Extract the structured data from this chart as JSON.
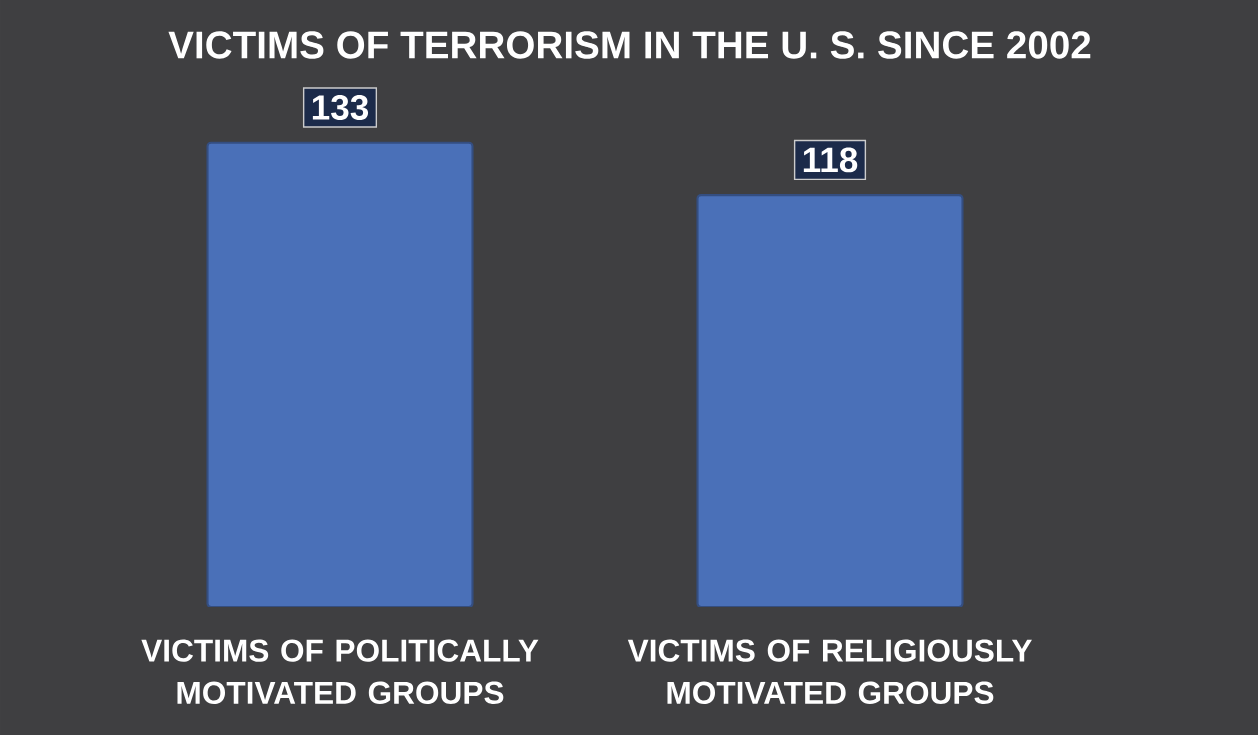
{
  "chart_data": {
    "type": "bar",
    "title": "VICTIMS OF TERRORISM IN THE U. S. SINCE 2002",
    "categories": [
      "VICTIMS OF POLITICALLY MOTIVATED GROUPS",
      "VICTIMS OF RELIGIOUSLY MOTIVATED GROUPS"
    ],
    "values": [
      133,
      118
    ],
    "color": "#4a70b8",
    "data_labels": true
  }
}
